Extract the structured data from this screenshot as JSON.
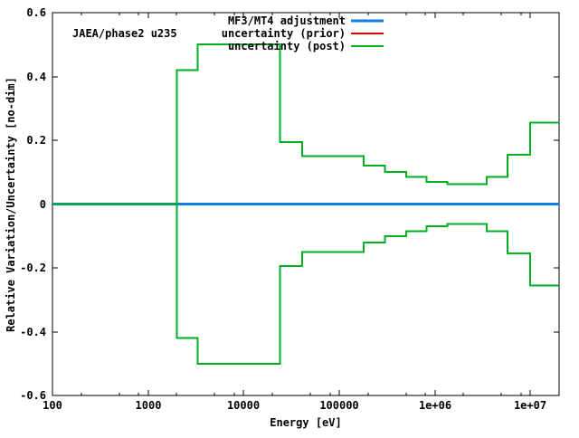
{
  "chart_data": {
    "type": "line",
    "subtype": "step-function",
    "annotation": "JAEA/phase2 u235",
    "xlabel": "Energy [eV]",
    "ylabel": "Relative Variation/Uncertainty [no-dim]",
    "x_scale": "log",
    "y_scale": "linear",
    "xlim": [
      100,
      20000000
    ],
    "ylim": [
      -0.6,
      0.6
    ],
    "grid": false,
    "xticks": [
      {
        "v": 100,
        "label": "100"
      },
      {
        "v": 1000,
        "label": "1000"
      },
      {
        "v": 10000,
        "label": "10000"
      },
      {
        "v": 100000,
        "label": "100000"
      },
      {
        "v": 1000000,
        "label": "1e+06"
      },
      {
        "v": 10000000,
        "label": "1e+07"
      }
    ],
    "x_minor_multiples": [
      2,
      5,
      8
    ],
    "yticks": [
      {
        "v": 0.6,
        "label": "0.6"
      },
      {
        "v": 0.4,
        "label": "0.4"
      },
      {
        "v": 0.2,
        "label": "0.2"
      },
      {
        "v": 0,
        "label": "0"
      },
      {
        "v": -0.2,
        "label": "-0.2"
      },
      {
        "v": -0.4,
        "label": "-0.4"
      },
      {
        "v": -0.6,
        "label": "-0.6"
      }
    ],
    "legend": {
      "position": "top-center-right",
      "border": false,
      "entries": [
        {
          "label": "MF3/MT4 adjustment",
          "color": "#0e7ee0",
          "line_width": 3
        },
        {
          "label": "uncertainty (prior)",
          "color": "#e00000",
          "line_width": 2
        },
        {
          "label": "uncertainty (post)",
          "color": "#00b020",
          "line_width": 2
        }
      ]
    },
    "series": [
      {
        "name": "MF3/MT4 adjustment",
        "type": "constant",
        "color": "#0e7ee0",
        "line_width": 3,
        "x_range": [
          100,
          20000000
        ],
        "y": 0
      },
      {
        "name": "uncertainty (prior)",
        "type": "step_symmetric",
        "color": "#e00000",
        "line_width": 2,
        "note": "coincides with post curve and is hidden beneath it",
        "boundaries_eV": [
          100,
          2000,
          3300,
          24000,
          41000,
          180000,
          300000,
          500000,
          820000,
          1350000,
          3500000,
          5800000,
          10000000,
          20000000
        ],
        "values_upper": [
          0,
          0.42,
          0.5,
          0.195,
          0.15,
          0.12,
          0.1,
          0.085,
          0.07,
          0.062,
          0.085,
          0.155,
          0.255
        ]
      },
      {
        "name": "uncertainty (post)",
        "type": "step_symmetric",
        "color": "#00b020",
        "line_width": 2,
        "boundaries_eV": [
          100,
          2000,
          3300,
          24000,
          41000,
          180000,
          300000,
          500000,
          820000,
          1350000,
          3500000,
          5800000,
          10000000,
          20000000
        ],
        "values_upper": [
          0,
          0.42,
          0.5,
          0.195,
          0.15,
          0.12,
          0.1,
          0.085,
          0.07,
          0.062,
          0.085,
          0.155,
          0.255
        ]
      }
    ]
  }
}
